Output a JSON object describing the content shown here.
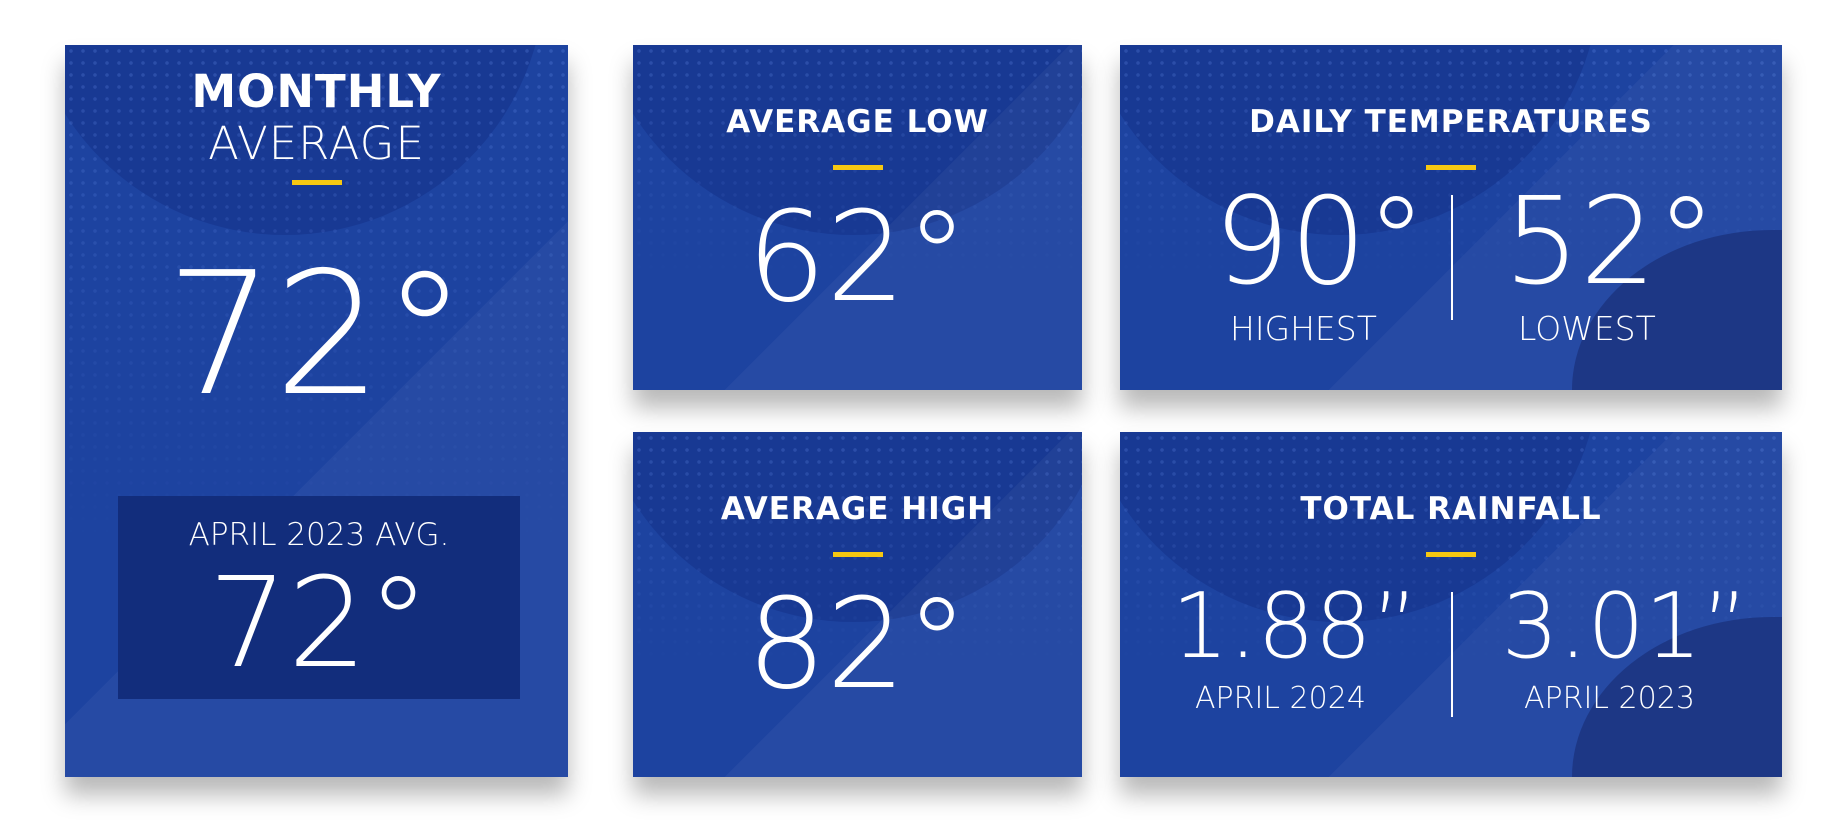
{
  "monthly": {
    "title_bold": "MONTHLY",
    "title_light": "AVERAGE",
    "value": "72°",
    "compare_label": "APRIL 2023 AVG.",
    "compare_value": "72°"
  },
  "avg_low": {
    "title": "AVERAGE LOW",
    "value": "62°"
  },
  "avg_high": {
    "title": "AVERAGE HIGH",
    "value": "82°"
  },
  "daily": {
    "title": "DAILY TEMPERATURES",
    "high_value": "90°",
    "high_label": "HIGHEST",
    "low_value": "52°",
    "low_label": "LOWEST"
  },
  "rainfall": {
    "title": "TOTAL RAINFALL",
    "current_value": "1.88”",
    "current_label": "APRIL 2024",
    "previous_value": "3.01”",
    "previous_label": "APRIL 2023"
  },
  "colors": {
    "card": "#1d43a0",
    "accent": "#f6c812",
    "inner_box": "#122d7c"
  }
}
